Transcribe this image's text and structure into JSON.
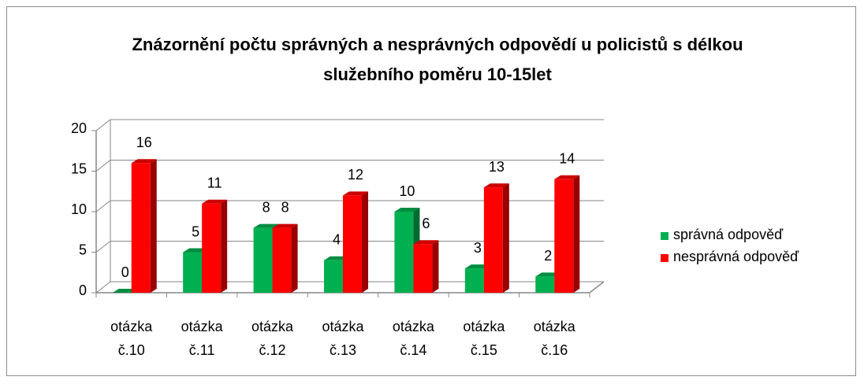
{
  "chart_data": {
    "type": "bar3d",
    "title": "Znázornění počtu správných a nesprávných odpovědí u policistů s délkou služebního poměru 10-15let",
    "categories": [
      "otázka č.10",
      "otázka č.11",
      "otázka č.12",
      "otázka č.13",
      "otázka č.14",
      "otázka č.15",
      "otázka č.16"
    ],
    "series": [
      {
        "name": "správná odpověď",
        "color": "#00b050",
        "values": [
          0,
          5,
          8,
          4,
          10,
          3,
          2
        ]
      },
      {
        "name": "nesprávná odpověď",
        "color": "#ff0000",
        "values": [
          16,
          11,
          8,
          12,
          6,
          13,
          14
        ]
      }
    ],
    "ylim": [
      0,
      20
    ],
    "yticks": [
      0,
      5,
      10,
      15,
      20
    ],
    "grid": true,
    "legend": "right"
  }
}
